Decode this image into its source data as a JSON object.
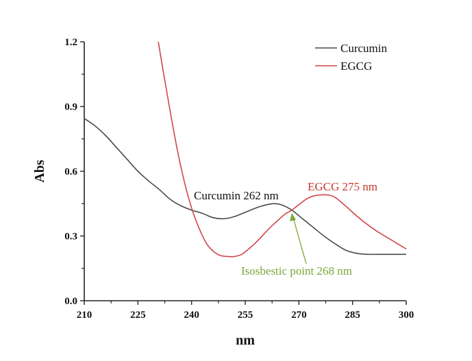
{
  "chart_data": {
    "type": "line",
    "title": "",
    "xlabel": "nm",
    "ylabel": "Abs",
    "xlim": [
      210,
      300
    ],
    "ylim": [
      0.0,
      1.2
    ],
    "xticks": [
      210,
      225,
      240,
      255,
      270,
      285,
      300
    ],
    "xtick_labels": [
      "210",
      "225",
      "240",
      "255",
      "270",
      "285",
      "300"
    ],
    "yticks": [
      0.0,
      0.3,
      0.6,
      0.9,
      1.2
    ],
    "ytick_labels": [
      "0.0",
      "0.3",
      "0.6",
      "0.9",
      "1.2"
    ],
    "grid": false,
    "legend_position": "top-right",
    "series": [
      {
        "name": "Curcumin",
        "color": "#4a4a4a",
        "x": [
          210,
          213,
          216,
          219,
          222,
          225,
          228,
          231,
          234,
          237,
          240,
          243,
          246,
          249,
          252,
          255,
          258,
          261,
          263,
          265,
          268,
          271,
          274,
          277,
          280,
          283,
          286,
          289,
          292,
          296,
          300
        ],
        "y": [
          0.845,
          0.81,
          0.765,
          0.71,
          0.655,
          0.6,
          0.555,
          0.515,
          0.47,
          0.44,
          0.42,
          0.405,
          0.385,
          0.38,
          0.39,
          0.41,
          0.43,
          0.445,
          0.45,
          0.445,
          0.42,
          0.38,
          0.34,
          0.3,
          0.265,
          0.235,
          0.22,
          0.215,
          0.215,
          0.215,
          0.215
        ]
      },
      {
        "name": "EGCG",
        "color": "#d0464a",
        "x": [
          230.7,
          232,
          234,
          236,
          238,
          240,
          242,
          244,
          246,
          248,
          250,
          252,
          254,
          256,
          258,
          260,
          262,
          264,
          266,
          268,
          270,
          272,
          274,
          276,
          278,
          280,
          283,
          286,
          289,
          292,
          296,
          300
        ],
        "y": [
          1.2,
          1.07,
          0.88,
          0.7,
          0.55,
          0.43,
          0.34,
          0.27,
          0.23,
          0.21,
          0.205,
          0.205,
          0.215,
          0.24,
          0.27,
          0.305,
          0.34,
          0.37,
          0.4,
          0.42,
          0.445,
          0.47,
          0.485,
          0.49,
          0.49,
          0.48,
          0.44,
          0.395,
          0.355,
          0.32,
          0.28,
          0.24
        ]
      }
    ],
    "annotations": [
      {
        "text": "Curcumin 262 nm",
        "color": "#111111",
        "x": 262,
        "y": 0.45
      },
      {
        "text": "EGCG 275 nm",
        "color": "#c0392b",
        "x": 275,
        "y": 0.49
      },
      {
        "text": "Isosbestic point 268 nm",
        "color": "#7aa83a",
        "x": 268,
        "y": 0.42,
        "arrow": true
      }
    ]
  }
}
